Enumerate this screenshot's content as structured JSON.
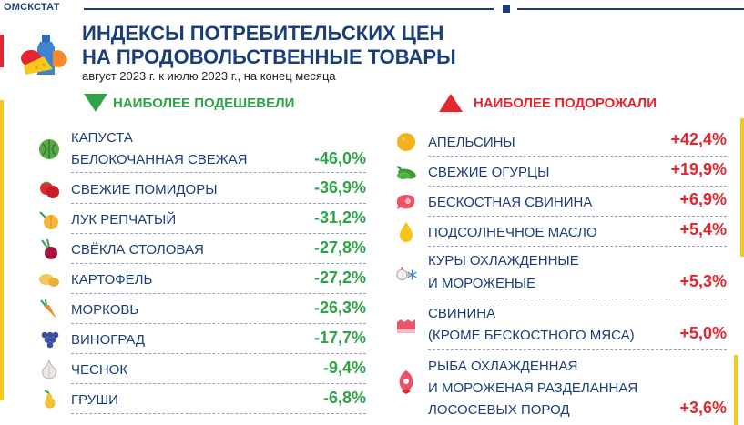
{
  "header": {
    "brand": "ОМСКСТАТ",
    "title_line1": "ИНДЕКСЫ ПОТРЕБИТЕЛЬСКИХ ЦЕН",
    "title_line2": "НА ПРОДОВОЛЬСТВЕННЫЕ ТОВАРЫ",
    "subtitle": "август 2023 г. к июлю 2023 г., на конец месяца"
  },
  "cheaper": {
    "heading": "НАИБОЛЕЕ ПОДЕШЕВЕЛИ",
    "items": [
      {
        "line1": "КАПУСТА",
        "line2": "БЕЛОКОЧАННАЯ СВЕЖАЯ",
        "value": "-46,0%",
        "icon": "cabbage-icon"
      },
      {
        "line1": "СВЕЖИЕ ПОМИДОРЫ",
        "value": "-36,9%",
        "icon": "tomato-icon"
      },
      {
        "line1": "ЛУК РЕПЧАТЫЙ",
        "value": "-31,2%",
        "icon": "onion-icon"
      },
      {
        "line1": "СВЁКЛА СТОЛОВАЯ",
        "value": "-27,8%",
        "icon": "beet-icon"
      },
      {
        "line1": "КАРТОФЕЛЬ",
        "value": "-27,2%",
        "icon": "potato-icon"
      },
      {
        "line1": "МОРКОВЬ",
        "value": "-26,3%",
        "icon": "carrot-icon"
      },
      {
        "line1": "ВИНОГРАД",
        "value": "-17,7%",
        "icon": "grapes-icon"
      },
      {
        "line1": "ЧЕСНОК",
        "value": "-9,4%",
        "icon": "garlic-icon"
      },
      {
        "line1": "ГРУШИ",
        "value": "-6,8%",
        "icon": "pear-icon"
      }
    ]
  },
  "pricier": {
    "heading": "НАИБОЛЕЕ ПОДОРОЖАЛИ",
    "items": [
      {
        "line1": "АПЕЛЬСИНЫ",
        "value": "+42,4%",
        "icon": "orange-icon"
      },
      {
        "line1": "СВЕЖИЕ ОГУРЦЫ",
        "value": "+19,9%",
        "icon": "cucumber-icon"
      },
      {
        "line1": "БЕСКОСТНАЯ СВИНИНА",
        "value": "+6,9%",
        "icon": "pork-steak-icon"
      },
      {
        "line1": "ПОДСОЛНЕЧНОЕ МАСЛО",
        "value": "+5,4%",
        "icon": "oil-drop-icon"
      },
      {
        "line1": "КУРЫ ОХЛАЖДЕННЫЕ",
        "line2": "И МОРОЖЕНЫЕ",
        "value": "+5,3%",
        "icon": "chicken-snowflake-icon"
      },
      {
        "line1": "СВИНИНА",
        "line2": "(КРОМЕ БЕСКОСТНОГО МЯСА)",
        "value": "+5,0%",
        "icon": "pork-icon"
      },
      {
        "line1": "РЫБА ОХЛАЖДЕННАЯ",
        "line2": "И МОРОЖЕНАЯ РАЗДЕЛАННАЯ",
        "line3": "ЛОСОСЕВЫХ ПОРОД",
        "value": "+3,6%",
        "icon": "fish-icon"
      }
    ]
  },
  "colors": {
    "brand_blue": "#1a3e7a",
    "green": "#2fa348",
    "red": "#e3262f",
    "yellow": "#f7c81c"
  }
}
